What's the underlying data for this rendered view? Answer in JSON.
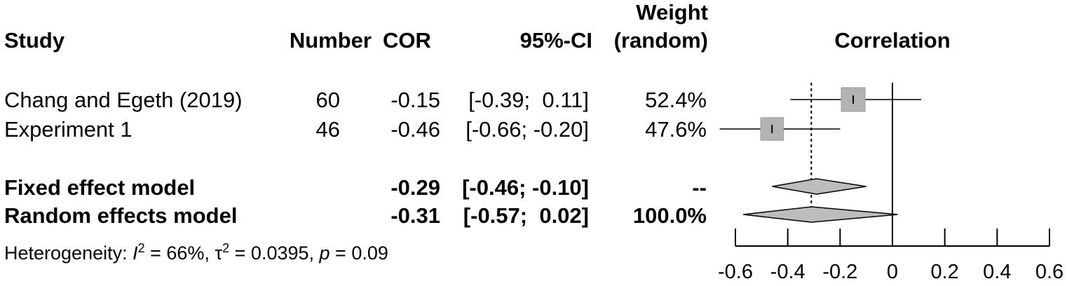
{
  "chart_data": {
    "type": "forest",
    "columns": {
      "study": "Study",
      "number": "Number",
      "cor": "COR",
      "ci": "95%-CI",
      "weight_line1": "Weight",
      "weight_line2": "(random)",
      "plot": "Correlation"
    },
    "studies": [
      {
        "name": "Chang and Egeth (2019)",
        "n": "60",
        "cor": "-0.15",
        "ci": "[-0.39;  0.11]",
        "weight": "52.4%",
        "estimate": -0.15,
        "lower": -0.39,
        "upper": 0.11,
        "weight_value": 52.4
      },
      {
        "name": "Experiment 1",
        "n": "46",
        "cor": "-0.46",
        "ci": "[-0.66; -0.20]",
        "weight": "47.6%",
        "estimate": -0.46,
        "lower": -0.66,
        "upper": -0.2,
        "weight_value": 47.6
      }
    ],
    "models": [
      {
        "name": "Fixed effect model",
        "cor": "-0.29",
        "ci": "[-0.46; -0.10]",
        "weight": "--",
        "estimate": -0.29,
        "lower": -0.46,
        "upper": -0.1
      },
      {
        "name": "Random effects model",
        "cor": "-0.31",
        "ci": "[-0.57;  0.02]",
        "weight": "100.0%",
        "estimate": -0.31,
        "lower": -0.57,
        "upper": 0.02
      }
    ],
    "heterogeneity": {
      "prefix": "Heterogeneity: ",
      "i2_value": " = 66%, ",
      "tau2_value": " = 0.0395, ",
      "p_value": " = 0.09"
    },
    "xlim": [
      -0.6,
      0.6
    ],
    "xticks": [
      -0.6,
      -0.4,
      -0.2,
      0,
      0.2,
      0.4,
      0.6
    ],
    "xtick_labels": [
      "-0.6",
      "-0.4",
      "-0.2",
      "0",
      "0.2",
      "0.4",
      "0.6"
    ],
    "reference_line": 0,
    "summary_line": -0.31,
    "colors": {
      "box": "#b3b3b3",
      "box_border": "#999999",
      "diamond": "#bdbdbd",
      "line": "#000000"
    }
  }
}
